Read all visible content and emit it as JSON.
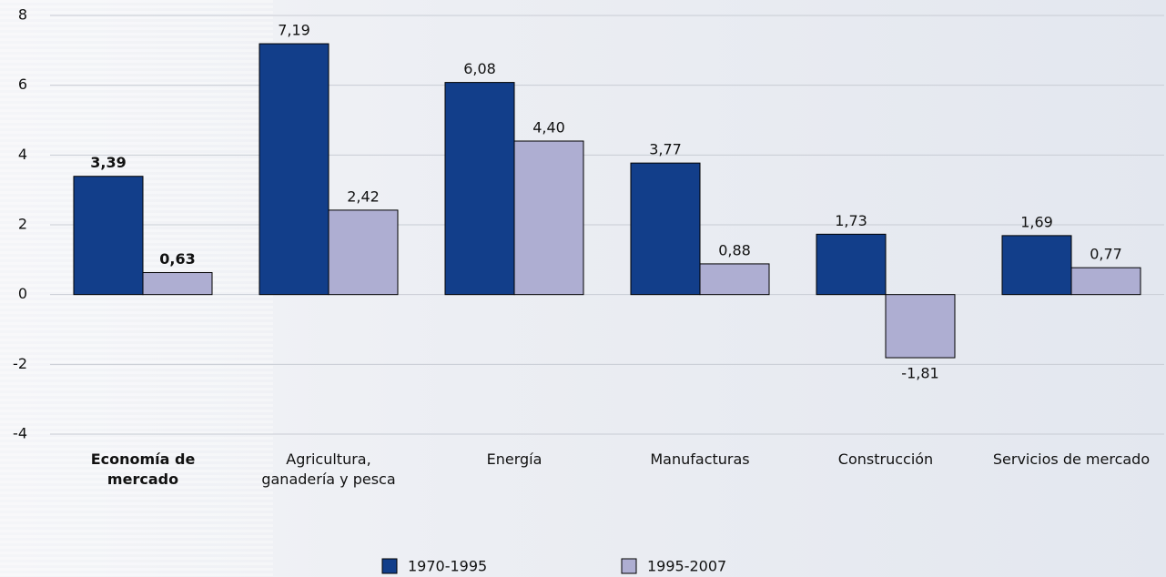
{
  "chart_data": {
    "type": "bar",
    "categories": [
      "Economía de mercado",
      "Agricultura, ganadería y pesca",
      "Energía",
      "Manufacturas",
      "Construcción",
      "Servicios de mercado"
    ],
    "series": [
      {
        "name": "1970-1995",
        "color": "#123e8a",
        "values": [
          3.39,
          7.19,
          6.08,
          3.77,
          1.73,
          1.69
        ],
        "value_labels": [
          "3,39",
          "7,19",
          "6,08",
          "3,77",
          "1,73",
          "1,69"
        ]
      },
      {
        "name": "1995-2007",
        "color": "#aeaed2",
        "values": [
          0.63,
          2.42,
          4.4,
          0.88,
          -1.81,
          0.77
        ],
        "value_labels": [
          "0,63",
          "2,42",
          "4,40",
          "0,88",
          "-1,81",
          "0,77"
        ]
      }
    ],
    "ylim": [
      -4,
      8
    ],
    "yticks": [
      -4,
      -2,
      0,
      2,
      4,
      6,
      8
    ],
    "grid": true,
    "legend": "bottom"
  }
}
